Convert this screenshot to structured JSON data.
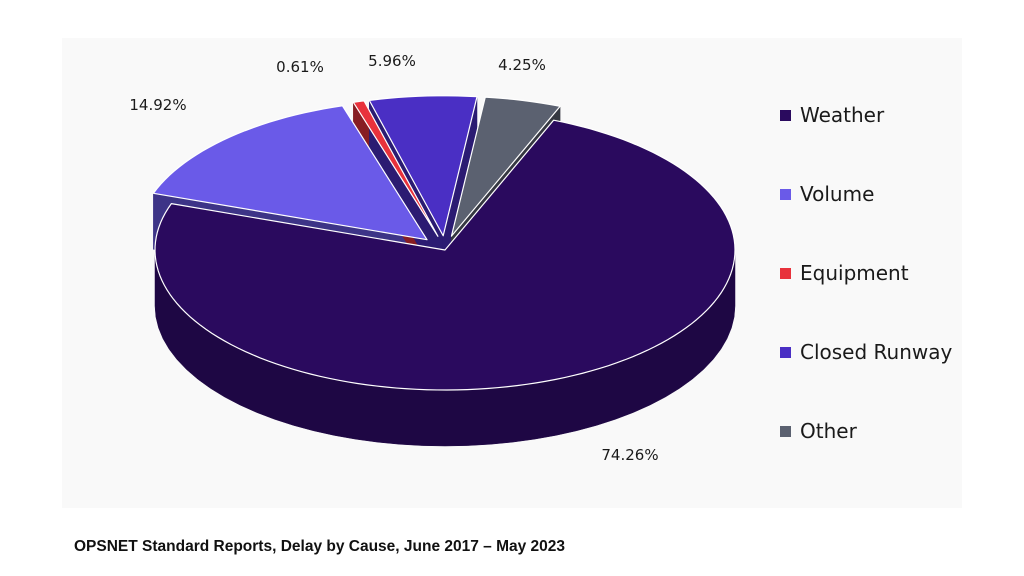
{
  "chart_data": {
    "type": "pie",
    "style": "3d-exploded",
    "title": "",
    "categories": [
      "Weather",
      "Volume",
      "Equipment",
      "Closed Runway",
      "Other"
    ],
    "values": [
      74.26,
      14.92,
      0.61,
      5.96,
      4.25
    ],
    "value_labels": [
      "74.26%",
      "14.92%",
      "0.61%",
      "5.96%",
      "4.25%"
    ],
    "colors": [
      "#2a0a5e",
      "#6a5ae8",
      "#e8323c",
      "#4a2fc4",
      "#5b6170"
    ],
    "legend_position": "right"
  },
  "legend": {
    "items": [
      {
        "label": "Weather",
        "color": "#2a0a5e"
      },
      {
        "label": "Volume",
        "color": "#6a5ae8"
      },
      {
        "label": "Equipment",
        "color": "#e8323c"
      },
      {
        "label": "Closed Runway",
        "color": "#4a2fc4"
      },
      {
        "label": "Other",
        "color": "#5b6170"
      }
    ]
  },
  "caption": "OPSNET Standard Reports, Delay by Cause, June 2017 – May 2023"
}
